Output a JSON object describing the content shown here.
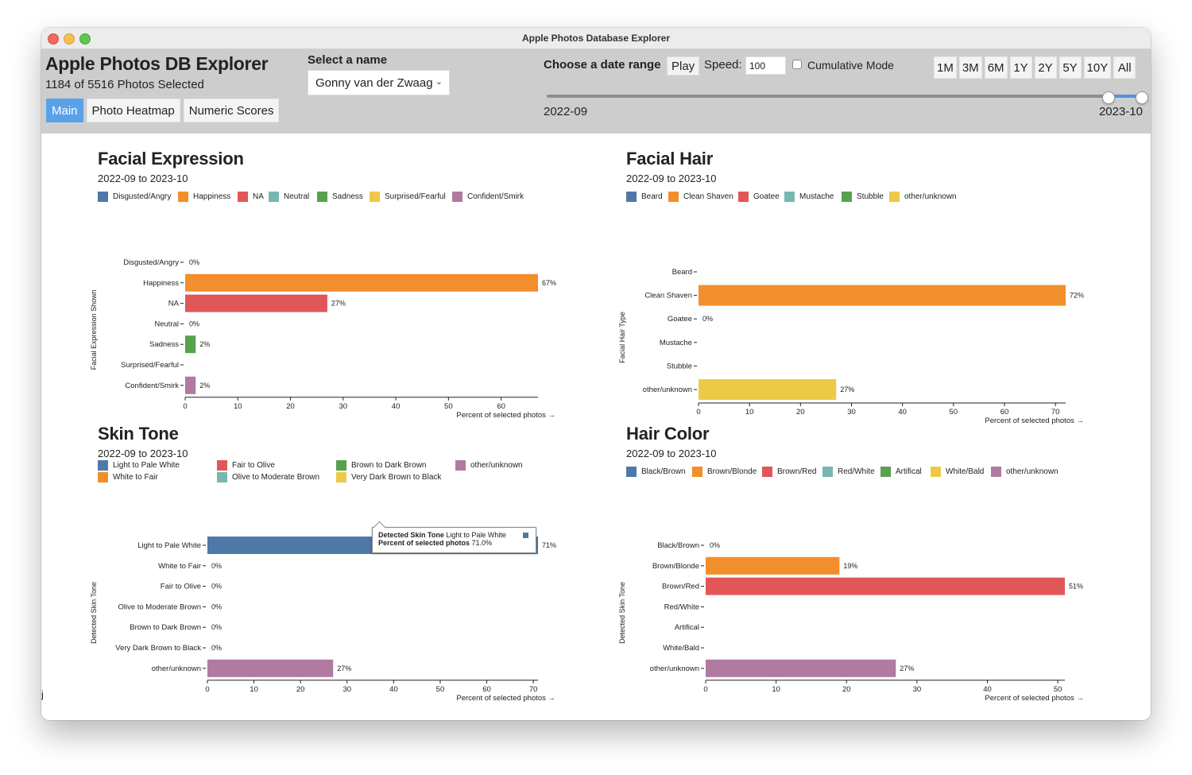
{
  "window": {
    "title": "Apple Photos Database Explorer"
  },
  "header": {
    "app_title": "Apple Photos DB Explorer",
    "photo_count": "1184 of 5516 Photos Selected",
    "tabs": [
      {
        "label": "Main",
        "active": true
      },
      {
        "label": "Photo Heatmap",
        "active": false
      },
      {
        "label": "Numeric Scores",
        "active": false
      }
    ],
    "name_select_label": "Select a name",
    "name_select_value": "Gonny van der Zwaag",
    "date_range_label": "Choose a date range",
    "play_label": "Play",
    "speed_label": "Speed:",
    "speed_value": "100",
    "cumulative_label": "Cumulative Mode",
    "cumulative_checked": false,
    "range_buttons": [
      "1M",
      "3M",
      "6M",
      "1Y",
      "2Y",
      "5Y",
      "10Y",
      "All"
    ],
    "range_start": "2022-09",
    "range_end": "2023-10",
    "slider_selection": [
      0.944,
      1.0
    ]
  },
  "colors": {
    "blue": "#4e79a7",
    "orange": "#f28e2b",
    "red": "#e15759",
    "teal": "#76b7b2",
    "green": "#59a14f",
    "yellow": "#edc948",
    "purple": "#b07aa1",
    "accent": "#5aa2e8"
  },
  "panels": [
    {
      "id": "facial-expression",
      "title": "Facial Expression",
      "subtitle": "2022-09 to 2023-10",
      "legend": [
        {
          "label": "Disgusted/Angry",
          "color": "#4e79a7"
        },
        {
          "label": "Happiness",
          "color": "#f28e2b"
        },
        {
          "label": "NA",
          "color": "#e15759"
        },
        {
          "label": "Neutral",
          "color": "#76b7b2"
        },
        {
          "label": "Sadness",
          "color": "#59a14f"
        },
        {
          "label": "Surprised/Fearful",
          "color": "#edc948"
        },
        {
          "label": "Confident/Smirk",
          "color": "#b07aa1"
        }
      ],
      "chart_data": {
        "type": "bar",
        "orientation": "horizontal",
        "categories": [
          "Disgusted/Angry",
          "Happiness",
          "NA",
          "Neutral",
          "Sadness",
          "Surprised/Fearful",
          "Confident/Smirk"
        ],
        "values": [
          0,
          67,
          27,
          0,
          2,
          null,
          2
        ],
        "value_labels": [
          "0%",
          "67%",
          "27%",
          "0%",
          "2%",
          "",
          "2%"
        ],
        "colors": [
          "#4e79a7",
          "#f28e2b",
          "#e15759",
          "#76b7b2",
          "#59a14f",
          "#edc948",
          "#b07aa1"
        ],
        "xlim": [
          0,
          67
        ],
        "xticks": [
          0,
          10,
          20,
          30,
          40,
          50,
          60
        ],
        "xlabel": "Percent of selected photos →",
        "ylabel": "Facial Expression Shown"
      }
    },
    {
      "id": "facial-hair",
      "title": "Facial Hair",
      "subtitle": "2022-09 to 2023-10",
      "legend": [
        {
          "label": "Beard",
          "color": "#4e79a7"
        },
        {
          "label": "Clean Shaven",
          "color": "#f28e2b"
        },
        {
          "label": "Goatee",
          "color": "#e15759"
        },
        {
          "label": "Mustache",
          "color": "#76b7b2"
        },
        {
          "label": "Stubble",
          "color": "#59a14f"
        },
        {
          "label": "other/unknown",
          "color": "#edc948"
        }
      ],
      "chart_data": {
        "type": "bar",
        "orientation": "horizontal",
        "categories": [
          "Beard",
          "Clean Shaven",
          "Goatee",
          "Mustache",
          "Stubble",
          "other/unknown"
        ],
        "values": [
          null,
          72,
          0,
          null,
          null,
          27
        ],
        "value_labels": [
          "",
          "72%",
          "0%",
          "",
          "",
          "27%"
        ],
        "colors": [
          "#4e79a7",
          "#f28e2b",
          "#e15759",
          "#76b7b2",
          "#59a14f",
          "#edc948"
        ],
        "xlim": [
          0,
          72
        ],
        "xticks": [
          0,
          10,
          20,
          30,
          40,
          50,
          60,
          70
        ],
        "xlabel": "Percent of selected photos →",
        "ylabel": "Facial Hair Type"
      }
    },
    {
      "id": "skin-tone",
      "title": "Skin Tone",
      "subtitle": "2022-09 to 2023-10",
      "legend": [
        {
          "label": "Light to Pale White",
          "color": "#4e79a7"
        },
        {
          "label": "White to Fair",
          "color": "#f28e2b"
        },
        {
          "label": "Fair to Olive",
          "color": "#e15759"
        },
        {
          "label": "Olive to Moderate Brown",
          "color": "#76b7b2"
        },
        {
          "label": "Brown to Dark Brown",
          "color": "#59a14f"
        },
        {
          "label": "Very Dark Brown to Black",
          "color": "#edc948"
        },
        {
          "label": "other/unknown",
          "color": "#b07aa1"
        }
      ],
      "chart_data": {
        "type": "bar",
        "orientation": "horizontal",
        "categories": [
          "Light to Pale White",
          "White to Fair",
          "Fair to Olive",
          "Olive to Moderate Brown",
          "Brown to Dark Brown",
          "Very Dark Brown to Black",
          "other/unknown"
        ],
        "values": [
          71,
          0,
          0,
          0,
          0,
          0,
          27
        ],
        "value_labels": [
          "71%",
          "0%",
          "0%",
          "0%",
          "0%",
          "0%",
          "27%"
        ],
        "colors": [
          "#4e79a7",
          "#f28e2b",
          "#e15759",
          "#76b7b2",
          "#59a14f",
          "#edc948",
          "#b07aa1"
        ],
        "xlim": [
          0,
          71
        ],
        "xticks": [
          0,
          10,
          20,
          30,
          40,
          50,
          60,
          70
        ],
        "xlabel": "Percent of selected photos →",
        "ylabel": "Detected Skin Tone"
      },
      "tooltip": {
        "line1_key": "Detected Skin Tone",
        "line1_value": "Light to Pale White",
        "line2_key": "Percent of selected photos",
        "line2_value": "71.0%"
      }
    },
    {
      "id": "hair-color",
      "title": "Hair Color",
      "subtitle": "2022-09 to 2023-10",
      "legend": [
        {
          "label": "Black/Brown",
          "color": "#4e79a7"
        },
        {
          "label": "Brown/Blonde",
          "color": "#f28e2b"
        },
        {
          "label": "Brown/Red",
          "color": "#e15759"
        },
        {
          "label": "Red/White",
          "color": "#76b7b2"
        },
        {
          "label": "Artifical",
          "color": "#59a14f"
        },
        {
          "label": "White/Bald",
          "color": "#edc948"
        },
        {
          "label": "other/unknown",
          "color": "#b07aa1"
        }
      ],
      "chart_data": {
        "type": "bar",
        "orientation": "horizontal",
        "categories": [
          "Black/Brown",
          "Brown/Blonde",
          "Brown/Red",
          "Red/White",
          "Artifical",
          "White/Bald",
          "other/unknown"
        ],
        "values": [
          0,
          19,
          51,
          null,
          null,
          null,
          27
        ],
        "value_labels": [
          "0%",
          "19%",
          "51%",
          "",
          "",
          "",
          "27%"
        ],
        "colors": [
          "#4e79a7",
          "#f28e2b",
          "#e15759",
          "#76b7b2",
          "#59a14f",
          "#edc948",
          "#b07aa1"
        ],
        "xlim": [
          0,
          51
        ],
        "xticks": [
          0,
          10,
          20,
          30,
          40,
          50
        ],
        "xlabel": "Percent of selected photos →",
        "ylabel": "Detected Skin Tone"
      }
    }
  ],
  "stray_text": "j"
}
